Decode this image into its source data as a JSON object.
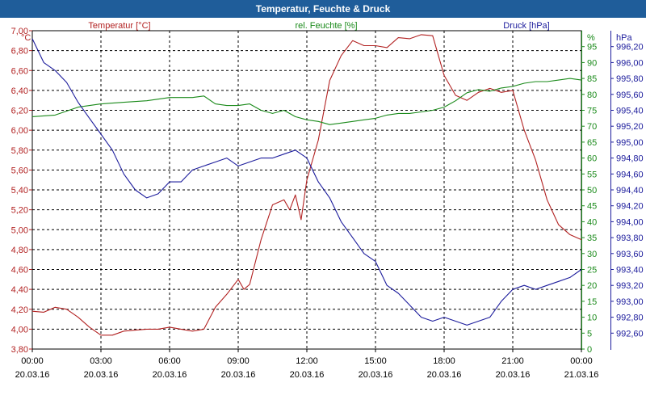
{
  "chart_data": {
    "type": "line",
    "title": "Temperatur, Feuchte & Druck",
    "x_tick_labels": [
      {
        "time": "00:00",
        "date": "20.03.16"
      },
      {
        "time": "03:00",
        "date": "20.03.16"
      },
      {
        "time": "06:00",
        "date": "20.03.16"
      },
      {
        "time": "09:00",
        "date": "20.03.16"
      },
      {
        "time": "12:00",
        "date": "20.03.16"
      },
      {
        "time": "15:00",
        "date": "20.03.16"
      },
      {
        "time": "18:00",
        "date": "20.03.16"
      },
      {
        "time": "21:00",
        "date": "20.03.16"
      },
      {
        "time": "00:00",
        "date": "21.03.16"
      }
    ],
    "xlim": [
      0,
      24
    ],
    "axes": {
      "temperature": {
        "label": "Temperatur [°C]",
        "unit": "°C",
        "color": "#b22222",
        "ylim": [
          3.8,
          7.0
        ],
        "ticks": [
          "7,00",
          "6,80",
          "6,60",
          "6,40",
          "6,20",
          "6,00",
          "5,80",
          "5,60",
          "5,40",
          "5,20",
          "5,00",
          "4,80",
          "4,60",
          "4,40",
          "4,20",
          "4,00",
          "3,80"
        ]
      },
      "humidity": {
        "label": "rel. Feuchte [%]",
        "unit": "%",
        "color": "#1a8a1a",
        "ylim": [
          0,
          100
        ],
        "ticks": [
          "95",
          "90",
          "85",
          "80",
          "75",
          "70",
          "65",
          "60",
          "55",
          "50",
          "45",
          "40",
          "35",
          "30",
          "25",
          "20",
          "15",
          "10",
          "5",
          "0"
        ]
      },
      "pressure": {
        "label": "Druck [hPa]",
        "unit": "hPa",
        "color": "#1c1c9c",
        "ylim": [
          992.4,
          996.4
        ],
        "ticks": [
          "996,20",
          "996,00",
          "995,80",
          "995,60",
          "995,40",
          "995,20",
          "995,00",
          "994,80",
          "994,60",
          "994,40",
          "994,20",
          "994,00",
          "993,80",
          "993,60",
          "993,40",
          "993,20",
          "993,00",
          "992,80",
          "992,60"
        ]
      }
    },
    "series": [
      {
        "name": "Temperatur",
        "axis": "temperature",
        "color": "#b22222",
        "x": [
          0,
          0.5,
          1,
          1.5,
          2,
          2.5,
          3,
          3.5,
          4,
          4.5,
          5,
          5.5,
          6,
          6.5,
          7,
          7.5,
          8,
          8.5,
          9,
          9.25,
          9.5,
          10,
          10.5,
          11,
          11.25,
          11.5,
          11.75,
          12,
          12.5,
          13,
          13.5,
          14,
          14.5,
          15,
          15.5,
          16,
          16.5,
          17,
          17.5,
          18,
          18.5,
          19,
          19.5,
          20,
          20.5,
          21,
          21.5,
          22,
          22.5,
          23,
          23.5,
          24
        ],
        "values": [
          4.18,
          4.17,
          4.22,
          4.2,
          4.12,
          4.02,
          3.94,
          3.94,
          3.98,
          3.99,
          4.0,
          4.0,
          4.02,
          4.0,
          3.98,
          4.0,
          4.22,
          4.35,
          4.5,
          4.4,
          4.45,
          4.9,
          5.25,
          5.3,
          5.2,
          5.35,
          5.1,
          5.5,
          5.9,
          6.5,
          6.75,
          6.9,
          6.85,
          6.85,
          6.83,
          6.93,
          6.92,
          6.96,
          6.95,
          6.55,
          6.35,
          6.3,
          6.38,
          6.42,
          6.38,
          6.4,
          6.0,
          5.7,
          5.3,
          5.05,
          4.95,
          4.9
        ]
      },
      {
        "name": "rel. Feuchte",
        "axis": "humidity",
        "color": "#1a8a1a",
        "x": [
          0,
          1,
          2,
          3,
          4,
          5,
          6,
          7,
          7.5,
          8,
          8.5,
          9,
          9.5,
          10,
          10.5,
          11,
          11.5,
          12,
          12.5,
          13,
          13.5,
          14,
          14.5,
          15,
          15.5,
          16,
          16.5,
          17,
          17.5,
          18,
          18.5,
          19,
          19.5,
          20,
          20.5,
          21,
          21.5,
          22,
          22.5,
          23,
          23.5,
          24
        ],
        "values": [
          73,
          73.5,
          76,
          77,
          77.5,
          78,
          79,
          79,
          79.5,
          77,
          76.5,
          76.5,
          77,
          75,
          74,
          75,
          73,
          72,
          71.5,
          70.5,
          71,
          71.5,
          72,
          72.5,
          73.5,
          74,
          74,
          74.5,
          75,
          76,
          78,
          80.5,
          81.5,
          81,
          82,
          82.5,
          83.5,
          84,
          84,
          84.5,
          85,
          84.5
        ]
      },
      {
        "name": "Druck",
        "axis": "pressure",
        "color": "#1c1c9c",
        "x": [
          0,
          0.5,
          1,
          1.5,
          2,
          2.5,
          3,
          3.5,
          4,
          4.5,
          5,
          5.5,
          6,
          6.5,
          7,
          7.5,
          8,
          8.5,
          9,
          9.5,
          10,
          10.5,
          11,
          11.5,
          12,
          12.5,
          13,
          13.5,
          14,
          14.5,
          15,
          15.5,
          16,
          16.5,
          17,
          17.5,
          18,
          18.5,
          19,
          19.5,
          20,
          20.5,
          21,
          21.5,
          22,
          22.5,
          23,
          23.5,
          24
        ],
        "values": [
          996.3,
          996.0,
          995.9,
          995.75,
          995.5,
          995.3,
          995.1,
          994.9,
          994.6,
          994.4,
          994.3,
          994.35,
          994.5,
          994.5,
          994.65,
          994.7,
          994.75,
          994.8,
          994.7,
          994.75,
          994.8,
          994.8,
          994.85,
          994.9,
          994.8,
          994.5,
          994.3,
          994.0,
          993.8,
          993.6,
          993.5,
          993.2,
          993.1,
          992.95,
          992.8,
          992.75,
          992.8,
          992.75,
          992.7,
          992.75,
          992.8,
          993.0,
          993.15,
          993.2,
          993.15,
          993.2,
          993.25,
          993.3,
          993.4
        ]
      }
    ]
  }
}
